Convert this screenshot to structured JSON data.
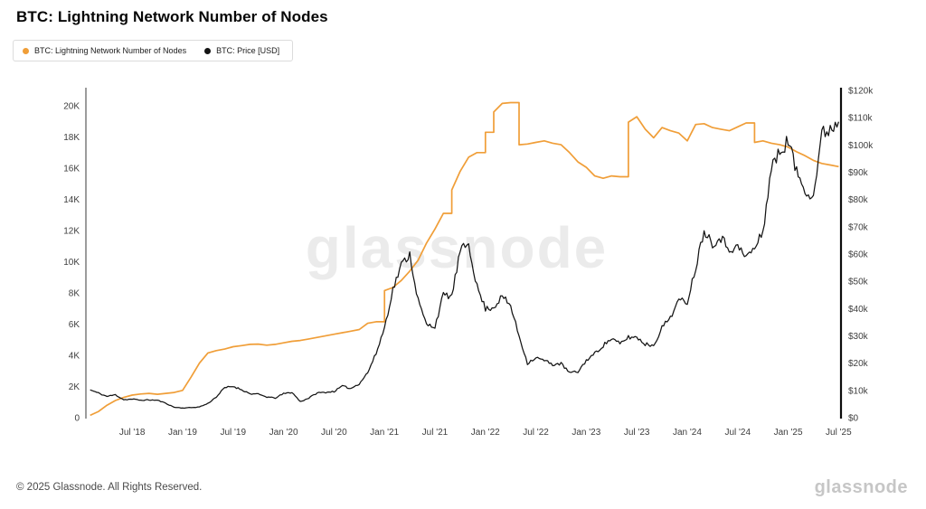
{
  "title": "BTC: Lightning Network Number of Nodes",
  "watermark": "glassnode",
  "legend": [
    {
      "label": "BTC: Lightning Network Number of Nodes",
      "color": "#f09e38"
    },
    {
      "label": "BTC: Price [USD]",
      "color": "#141414"
    }
  ],
  "footer": {
    "copyright": "© 2025 Glassnode. All Rights Reserved.",
    "logo": "glassnode"
  },
  "chart_data": {
    "type": "line",
    "title": "BTC: Lightning Network Number of Nodes",
    "grid": false,
    "legend_position": "top-left",
    "x": [
      "2018-02",
      "2018-03",
      "2018-04",
      "2018-05",
      "2018-06",
      "2018-07",
      "2018-08",
      "2018-09",
      "2018-10",
      "2018-11",
      "2018-12",
      "2019-01",
      "2019-02",
      "2019-03",
      "2019-04",
      "2019-05",
      "2019-06",
      "2019-07",
      "2019-08",
      "2019-09",
      "2019-10",
      "2019-11",
      "2019-12",
      "2020-01",
      "2020-02",
      "2020-03",
      "2020-04",
      "2020-05",
      "2020-06",
      "2020-07",
      "2020-08",
      "2020-09",
      "2020-10",
      "2020-11",
      "2020-12",
      "2021-01",
      "2021-02",
      "2021-03",
      "2021-04",
      "2021-05",
      "2021-06",
      "2021-07",
      "2021-08",
      "2021-09",
      "2021-10",
      "2021-11",
      "2021-12",
      "2022-01",
      "2022-02",
      "2022-03",
      "2022-04",
      "2022-05",
      "2022-06",
      "2022-07",
      "2022-08",
      "2022-09",
      "2022-10",
      "2022-11",
      "2022-12",
      "2023-01",
      "2023-02",
      "2023-03",
      "2023-04",
      "2023-05",
      "2023-06",
      "2023-07",
      "2023-08",
      "2023-09",
      "2023-10",
      "2023-11",
      "2023-12",
      "2024-01",
      "2024-02",
      "2024-03",
      "2024-04",
      "2024-05",
      "2024-06",
      "2024-07",
      "2024-08",
      "2024-09",
      "2024-10",
      "2024-11",
      "2024-12",
      "2025-01",
      "2025-02",
      "2025-03",
      "2025-04",
      "2025-05",
      "2025-06",
      "2025-07"
    ],
    "series": [
      {
        "name": "BTC: Lightning Network Number of Nodes",
        "axis": "left",
        "color": "#f09e38",
        "values": [
          150,
          400,
          800,
          1100,
          1300,
          1450,
          1520,
          1560,
          1500,
          1560,
          1620,
          1750,
          2600,
          3500,
          4150,
          4300,
          4400,
          4550,
          4620,
          4700,
          4720,
          4650,
          4700,
          4800,
          4900,
          4950,
          5050,
          5150,
          5250,
          5350,
          5450,
          5550,
          5650,
          6050,
          6150,
          8150,
          8350,
          8800,
          9400,
          10100,
          11200,
          12100,
          13100,
          14600,
          15800,
          16700,
          17000,
          18300,
          19600,
          20150,
          20200,
          17500,
          17550,
          17650,
          17750,
          17600,
          17500,
          17000,
          16400,
          16050,
          15500,
          15350,
          15500,
          15450,
          18950,
          19300,
          18500,
          17950,
          18600,
          18400,
          18250,
          17750,
          18800,
          18850,
          18600,
          18500,
          18400,
          18650,
          18900,
          17650,
          17750,
          17600,
          17500,
          17350,
          17050,
          16800,
          16500,
          16300,
          16200,
          16100
        ]
      },
      {
        "name": "BTC: Price [USD]",
        "axis": "right",
        "color": "#141414",
        "values": [
          10200,
          9000,
          7800,
          8400,
          6600,
          6800,
          6400,
          6500,
          6400,
          5300,
          3800,
          3550,
          3700,
          3950,
          5200,
          7600,
          11000,
          11500,
          10300,
          8800,
          8600,
          7600,
          7200,
          8800,
          9300,
          5900,
          7200,
          9100,
          9300,
          9600,
          11600,
          10700,
          12500,
          16500,
          23500,
          33000,
          47000,
          56000,
          60000,
          43000,
          34000,
          33500,
          45000,
          44500,
          61000,
          64000,
          48000,
          40000,
          40500,
          44500,
          41000,
          30000,
          20000,
          22000,
          21000,
          19500,
          19800,
          16500,
          16800,
          21000,
          23500,
          26500,
          29000,
          27000,
          29500,
          29500,
          27000,
          26500,
          33000,
          37000,
          43000,
          42500,
          55000,
          69000,
          64000,
          66000,
          62000,
          62500,
          59000,
          62000,
          68000,
          92000,
          97000,
          102000,
          90000,
          84000,
          81000,
          104000,
          106000,
          108500
        ]
      }
    ],
    "x_ticks": [
      {
        "date": "2018-07",
        "label": "Jul '18"
      },
      {
        "date": "2019-01",
        "label": "Jan '19"
      },
      {
        "date": "2019-07",
        "label": "Jul '19"
      },
      {
        "date": "2020-01",
        "label": "Jan '20"
      },
      {
        "date": "2020-07",
        "label": "Jul '20"
      },
      {
        "date": "2021-01",
        "label": "Jan '21"
      },
      {
        "date": "2021-07",
        "label": "Jul '21"
      },
      {
        "date": "2022-01",
        "label": "Jan '22"
      },
      {
        "date": "2022-07",
        "label": "Jul '22"
      },
      {
        "date": "2023-01",
        "label": "Jan '23"
      },
      {
        "date": "2023-07",
        "label": "Jul '23"
      },
      {
        "date": "2024-01",
        "label": "Jan '24"
      },
      {
        "date": "2024-07",
        "label": "Jul '24"
      },
      {
        "date": "2025-01",
        "label": "Jan '25"
      },
      {
        "date": "2025-07",
        "label": "Jul '25"
      }
    ],
    "y_left": {
      "range": [
        0,
        20000
      ],
      "ticks": [
        0,
        2000,
        4000,
        6000,
        8000,
        10000,
        12000,
        14000,
        16000,
        18000,
        20000
      ],
      "labels": [
        "0",
        "2K",
        "4K",
        "6K",
        "8K",
        "10K",
        "12K",
        "14K",
        "16K",
        "18K",
        "20K"
      ]
    },
    "y_right": {
      "range": [
        0,
        120000
      ],
      "ticks": [
        0,
        10000,
        20000,
        30000,
        40000,
        50000,
        60000,
        70000,
        80000,
        90000,
        100000,
        110000,
        120000
      ],
      "labels": [
        "$0",
        "$10k",
        "$20k",
        "$30k",
        "$40k",
        "$50k",
        "$60k",
        "$70k",
        "$80k",
        "$90k",
        "$100k",
        "$110k",
        "$120k"
      ]
    }
  }
}
